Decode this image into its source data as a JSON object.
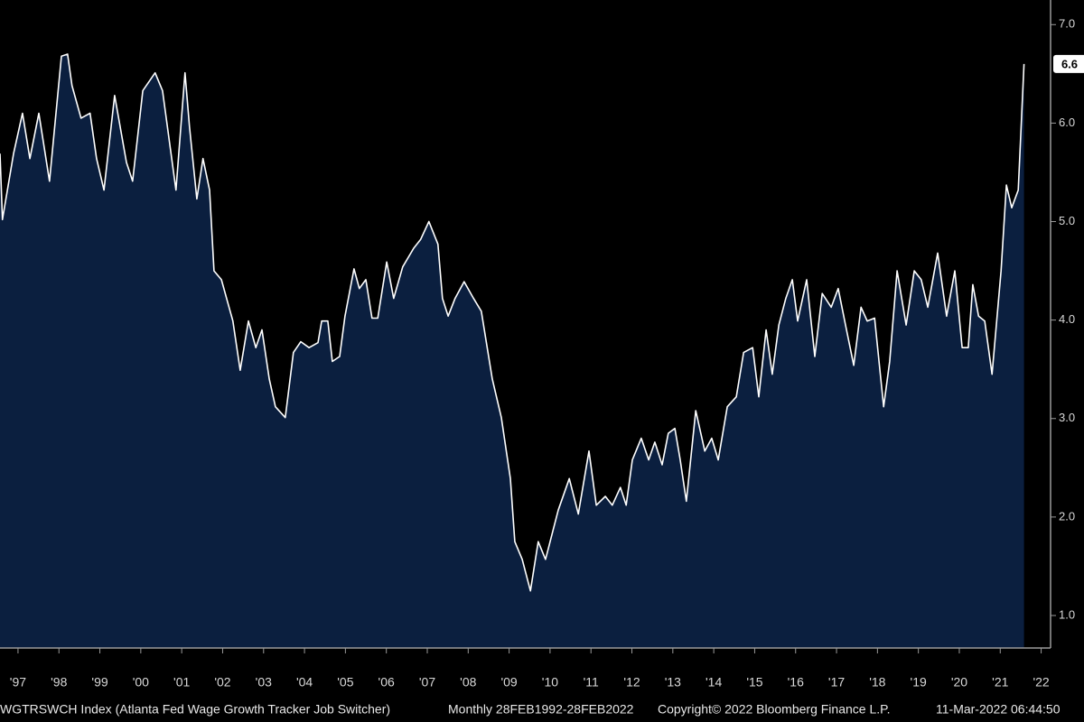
{
  "chart_data": {
    "type": "area",
    "series": [
      {
        "name": "WGTRSWCH Index",
        "color": "#ffffff",
        "fill": "#0b1f3f",
        "x": [
          1997.06,
          1997.12,
          1997.39,
          1997.61,
          1997.79,
          1998.01,
          1998.27,
          1998.56,
          1998.71,
          1998.82,
          1999.04,
          1999.26,
          1999.42,
          1999.6,
          1999.86,
          2000.15,
          2000.3,
          2000.55,
          2000.85,
          2001.03,
          2001.36,
          2001.58,
          2001.69,
          2001.87,
          2002.02,
          2002.18,
          2002.29,
          2002.47,
          2002.75,
          2002.93,
          2003.13,
          2003.31,
          2003.46,
          2003.64,
          2003.79,
          2004.03,
          2004.23,
          2004.41,
          2004.61,
          2004.83,
          2004.92,
          2005.07,
          2005.18,
          2005.36,
          2005.49,
          2005.71,
          2005.84,
          2006.0,
          2006.15,
          2006.29,
          2006.51,
          2006.68,
          2006.9,
          2007.17,
          2007.34,
          2007.54,
          2007.76,
          2007.87,
          2008.01,
          2008.18,
          2008.4,
          2008.63,
          2008.82,
          2009.09,
          2009.31,
          2009.53,
          2009.64,
          2009.82,
          2010.02,
          2010.21,
          2010.39,
          2010.7,
          2010.97,
          2011.19,
          2011.45,
          2011.63,
          2011.85,
          2012.02,
          2012.22,
          2012.36,
          2012.51,
          2012.73,
          2012.91,
          2013.06,
          2013.24,
          2013.39,
          2013.55,
          2013.68,
          2013.83,
          2014.06,
          2014.28,
          2014.45,
          2014.61,
          2014.83,
          2015.05,
          2015.23,
          2015.45,
          2015.6,
          2015.78,
          2015.93,
          2016.09,
          2016.26,
          2016.42,
          2016.55,
          2016.77,
          2016.97,
          2017.15,
          2017.37,
          2017.54,
          2017.72,
          2017.92,
          2018.1,
          2018.25,
          2018.43,
          2018.65,
          2018.8,
          2018.98,
          2019.2,
          2019.4,
          2019.57,
          2019.73,
          2019.97,
          2020.19,
          2020.39,
          2020.57,
          2020.72,
          2020.83,
          2020.97,
          2021.12,
          2021.3,
          2021.52,
          2021.65,
          2021.78,
          2021.94,
          2022.08
        ],
        "values": [
          5.69,
          5.02,
          5.69,
          6.1,
          5.64,
          6.1,
          5.41,
          6.68,
          6.7,
          6.38,
          6.05,
          6.1,
          5.64,
          5.32,
          6.28,
          5.6,
          5.41,
          6.33,
          6.51,
          6.33,
          5.32,
          6.51,
          5.96,
          5.23,
          5.64,
          5.32,
          4.5,
          4.41,
          3.99,
          3.49,
          3.99,
          3.72,
          3.9,
          3.4,
          3.12,
          3.01,
          3.67,
          3.78,
          3.72,
          3.77,
          3.99,
          3.99,
          3.58,
          3.63,
          4.04,
          4.52,
          4.32,
          4.41,
          4.02,
          4.02,
          4.59,
          4.22,
          4.54,
          4.73,
          4.82,
          5.0,
          4.77,
          4.22,
          4.04,
          4.22,
          4.39,
          4.22,
          4.09,
          3.4,
          3.01,
          2.39,
          1.75,
          1.57,
          1.25,
          1.75,
          1.57,
          2.07,
          2.39,
          2.03,
          2.67,
          2.12,
          2.21,
          2.12,
          2.3,
          2.12,
          2.58,
          2.8,
          2.58,
          2.76,
          2.53,
          2.85,
          2.9,
          2.58,
          2.16,
          3.08,
          2.67,
          2.8,
          2.58,
          3.12,
          3.22,
          3.67,
          3.72,
          3.22,
          3.9,
          3.45,
          3.95,
          4.22,
          4.41,
          3.99,
          4.41,
          3.63,
          4.27,
          4.13,
          4.32,
          3.95,
          3.54,
          4.13,
          3.99,
          4.02,
          3.12,
          3.58,
          4.5,
          3.95,
          4.5,
          4.41,
          4.13,
          4.68,
          4.04,
          4.5,
          3.72,
          3.72,
          4.36,
          4.04,
          3.99,
          3.45,
          4.5,
          5.37,
          5.14,
          5.32,
          6.6
        ]
      }
    ],
    "xlim": [
      1997.06,
      2022.73
    ],
    "ylim": [
      0.67,
      7.25
    ],
    "xticks": [
      {
        "value": 1997.5,
        "label": "'97"
      },
      {
        "value": 1998.5,
        "label": "'98"
      },
      {
        "value": 1999.5,
        "label": "'99"
      },
      {
        "value": 2000.5,
        "label": "'00"
      },
      {
        "value": 2001.5,
        "label": "'01"
      },
      {
        "value": 2002.5,
        "label": "'02"
      },
      {
        "value": 2003.5,
        "label": "'03"
      },
      {
        "value": 2004.5,
        "label": "'04"
      },
      {
        "value": 2005.5,
        "label": "'05"
      },
      {
        "value": 2006.5,
        "label": "'06"
      },
      {
        "value": 2007.5,
        "label": "'07"
      },
      {
        "value": 2008.5,
        "label": "'08"
      },
      {
        "value": 2009.5,
        "label": "'09"
      },
      {
        "value": 2010.5,
        "label": "'10"
      },
      {
        "value": 2011.5,
        "label": "'11"
      },
      {
        "value": 2012.5,
        "label": "'12"
      },
      {
        "value": 2013.5,
        "label": "'13"
      },
      {
        "value": 2014.5,
        "label": "'14"
      },
      {
        "value": 2015.5,
        "label": "'15"
      },
      {
        "value": 2016.5,
        "label": "'16"
      },
      {
        "value": 2017.5,
        "label": "'17"
      },
      {
        "value": 2018.5,
        "label": "'18"
      },
      {
        "value": 2019.5,
        "label": "'19"
      },
      {
        "value": 2020.5,
        "label": "'20"
      },
      {
        "value": 2021.5,
        "label": "'21"
      },
      {
        "value": 2022.5,
        "label": "'22"
      }
    ],
    "yticks": [
      {
        "value": 1,
        "label": "1.0"
      },
      {
        "value": 2,
        "label": "2.0"
      },
      {
        "value": 3,
        "label": "3.0"
      },
      {
        "value": 4,
        "label": "4.0"
      },
      {
        "value": 5,
        "label": "5.0"
      },
      {
        "value": 6,
        "label": "6.0"
      },
      {
        "value": 7,
        "label": "7.0"
      }
    ],
    "y_axis_side": "right",
    "footnotes": [
      "WGTRSWCH Index (Atlanta Fed Wage Growth Tracker Job Switcher)",
      "Monthly 28FEB1992-28FEB2022",
      "Copyright© 2022 Bloomberg Finance L.P.",
      "11-Mar-2022 06:44:50"
    ]
  }
}
